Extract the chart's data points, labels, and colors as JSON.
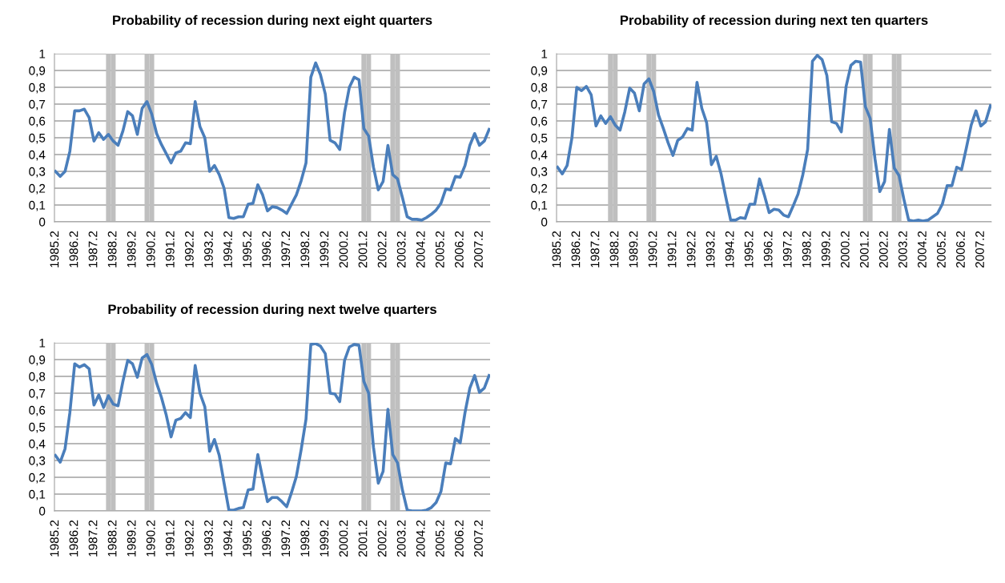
{
  "chart_data": [
    {
      "type": "line",
      "title": "Probability of recession during next eight quarters",
      "categories": [
        "1985.2",
        null,
        null,
        null,
        "1986.2",
        null,
        null,
        null,
        "1987.2",
        null,
        null,
        null,
        "1988.2",
        null,
        null,
        null,
        "1989.2",
        null,
        null,
        null,
        "1990.2",
        null,
        null,
        null,
        "1991.2",
        null,
        null,
        null,
        "1992.2",
        null,
        null,
        null,
        "1993.2",
        null,
        null,
        null,
        "1994.2",
        null,
        null,
        null,
        "1995.2",
        null,
        null,
        null,
        "1996.2",
        null,
        null,
        null,
        "1997.2",
        null,
        null,
        null,
        "1998.2",
        null,
        null,
        null,
        "1999.2",
        null,
        null,
        null,
        "2000.2",
        null,
        null,
        null,
        "2001.2",
        null,
        null,
        null,
        "2002.2",
        null,
        null,
        null,
        "2003.2",
        null,
        null,
        null,
        "2004.2",
        null,
        null,
        null,
        "2005.2",
        null,
        null,
        null,
        "2006.2",
        null,
        null,
        null,
        "2007.2",
        null,
        null
      ],
      "series": [
        {
          "type": "bar",
          "color": "#bfbfbf",
          "values": [
            null,
            null,
            null,
            null,
            null,
            null,
            null,
            null,
            null,
            null,
            null,
            1,
            1,
            null,
            null,
            null,
            null,
            null,
            null,
            1,
            1,
            null,
            null,
            null,
            null,
            null,
            null,
            null,
            null,
            null,
            null,
            null,
            null,
            null,
            null,
            null,
            null,
            null,
            null,
            null,
            null,
            null,
            null,
            null,
            null,
            null,
            null,
            null,
            null,
            null,
            null,
            null,
            null,
            null,
            null,
            null,
            null,
            null,
            null,
            null,
            null,
            null,
            null,
            null,
            1,
            1,
            null,
            null,
            null,
            null,
            1,
            1,
            null,
            null,
            null,
            null,
            null,
            null,
            null,
            null,
            null,
            null,
            null,
            null,
            null,
            null,
            null,
            null,
            null,
            null,
            null
          ]
        },
        {
          "color": "#4a7ebb",
          "values": [
            0.3,
            0.27,
            0.3,
            0.42,
            0.66,
            0.66,
            0.67,
            0.62,
            0.48,
            0.53,
            0.49,
            0.52,
            0.48,
            0.455,
            0.54,
            0.655,
            0.63,
            0.52,
            0.675,
            0.715,
            0.64,
            0.525,
            0.46,
            0.405,
            0.35,
            0.41,
            0.42,
            0.47,
            0.465,
            0.715,
            0.565,
            0.5,
            0.3,
            0.335,
            0.28,
            0.2,
            0.025,
            0.02,
            0.03,
            0.03,
            0.105,
            0.11,
            0.22,
            0.16,
            0.065,
            0.09,
            0.085,
            0.07,
            0.05,
            0.105,
            0.16,
            0.245,
            0.35,
            0.86,
            0.945,
            0.875,
            0.76,
            0.485,
            0.47,
            0.43,
            0.65,
            0.8,
            0.86,
            0.845,
            0.555,
            0.51,
            0.325,
            0.19,
            0.24,
            0.455,
            0.28,
            0.255,
            0.145,
            0.03,
            0.015,
            0.015,
            0.01,
            0.025,
            0.045,
            0.07,
            0.11,
            0.195,
            0.19,
            0.27,
            0.265,
            0.335,
            0.455,
            0.525,
            0.455,
            0.48,
            0.55
          ]
        }
      ],
      "ylim": [
        0,
        1
      ],
      "yticks": [
        0,
        {
          "value": 0.1,
          "label": "0,1"
        },
        {
          "value": 0.2,
          "label": "0,2"
        },
        {
          "value": 0.3,
          "label": "0,3"
        },
        {
          "value": 0.4,
          "label": "0,4"
        },
        {
          "value": 0.5,
          "label": "0,5"
        },
        {
          "value": 0.6,
          "label": "0,6"
        },
        {
          "value": 0.7,
          "label": "0,7"
        },
        {
          "value": 0.8,
          "label": "0,8"
        },
        {
          "value": 0.9,
          "label": "0,9"
        },
        1
      ],
      "grid": "y",
      "marker": "none",
      "line_style": "solid"
    },
    {
      "type": "line",
      "title": "Probability of recession during next ten quarters",
      "categories": [
        "1985.2",
        null,
        null,
        null,
        "1986.2",
        null,
        null,
        null,
        "1987.2",
        null,
        null,
        null,
        "1988.2",
        null,
        null,
        null,
        "1989.2",
        null,
        null,
        null,
        "1990.2",
        null,
        null,
        null,
        "1991.2",
        null,
        null,
        null,
        "1992.2",
        null,
        null,
        null,
        "1993.2",
        null,
        null,
        null,
        "1994.2",
        null,
        null,
        null,
        "1995.2",
        null,
        null,
        null,
        "1996.2",
        null,
        null,
        null,
        "1997.2",
        null,
        null,
        null,
        "1998.2",
        null,
        null,
        null,
        "1999.2",
        null,
        null,
        null,
        "2000.2",
        null,
        null,
        null,
        "2001.2",
        null,
        null,
        null,
        "2002.2",
        null,
        null,
        null,
        "2003.2",
        null,
        null,
        null,
        "2004.2",
        null,
        null,
        null,
        "2005.2",
        null,
        null,
        null,
        "2006.2",
        null,
        null,
        null,
        "2007.2",
        null,
        null
      ],
      "series": [
        {
          "type": "bar",
          "color": "#bfbfbf",
          "values": [
            null,
            null,
            null,
            null,
            null,
            null,
            null,
            null,
            null,
            null,
            null,
            1,
            1,
            null,
            null,
            null,
            null,
            null,
            null,
            1,
            1,
            null,
            null,
            null,
            null,
            null,
            null,
            null,
            null,
            null,
            null,
            null,
            null,
            null,
            null,
            null,
            null,
            null,
            null,
            null,
            null,
            null,
            null,
            null,
            null,
            null,
            null,
            null,
            null,
            null,
            null,
            null,
            null,
            null,
            null,
            null,
            null,
            null,
            null,
            null,
            null,
            null,
            null,
            null,
            1,
            1,
            null,
            null,
            null,
            null,
            1,
            1,
            null,
            null,
            null,
            null,
            null,
            null,
            null,
            null,
            null,
            null,
            null,
            null,
            null,
            null,
            null,
            null,
            null,
            null,
            null
          ]
        },
        {
          "color": "#4a7ebb",
          "values": [
            0.325,
            0.285,
            0.335,
            0.5,
            0.8,
            0.78,
            0.805,
            0.755,
            0.57,
            0.63,
            0.585,
            0.625,
            0.575,
            0.545,
            0.655,
            0.795,
            0.765,
            0.66,
            0.82,
            0.85,
            0.775,
            0.635,
            0.555,
            0.47,
            0.395,
            0.485,
            0.505,
            0.555,
            0.545,
            0.83,
            0.675,
            0.59,
            0.34,
            0.39,
            0.285,
            0.145,
            0.01,
            0.01,
            0.025,
            0.02,
            0.105,
            0.105,
            0.255,
            0.16,
            0.055,
            0.075,
            0.07,
            0.04,
            0.03,
            0.095,
            0.165,
            0.28,
            0.43,
            0.955,
            0.99,
            0.965,
            0.87,
            0.595,
            0.585,
            0.535,
            0.805,
            0.93,
            0.955,
            0.95,
            0.685,
            0.615,
            0.375,
            0.18,
            0.24,
            0.55,
            0.32,
            0.275,
            0.135,
            0.01,
            0.005,
            0.01,
            0.005,
            0.01,
            0.03,
            0.05,
            0.105,
            0.215,
            0.215,
            0.325,
            0.31,
            0.44,
            0.575,
            0.66,
            0.57,
            0.595,
            0.69
          ]
        }
      ],
      "ylim": [
        0,
        1
      ],
      "yticks": [
        0,
        {
          "value": 0.1,
          "label": "0,1"
        },
        {
          "value": 0.2,
          "label": "0,2"
        },
        {
          "value": 0.3,
          "label": "0,3"
        },
        {
          "value": 0.4,
          "label": "0,4"
        },
        {
          "value": 0.5,
          "label": "0,5"
        },
        {
          "value": 0.6,
          "label": "0,6"
        },
        {
          "value": 0.7,
          "label": "0,7"
        },
        {
          "value": 0.8,
          "label": "0,8"
        },
        {
          "value": 0.9,
          "label": "0,9"
        },
        1
      ],
      "grid": "y",
      "marker": "none",
      "line_style": "solid"
    },
    {
      "type": "line",
      "title": "Probability of recession during next twelve quarters",
      "categories": [
        "1985.2",
        null,
        null,
        null,
        "1986.2",
        null,
        null,
        null,
        "1987.2",
        null,
        null,
        null,
        "1988.2",
        null,
        null,
        null,
        "1989.2",
        null,
        null,
        null,
        "1990.2",
        null,
        null,
        null,
        "1991.2",
        null,
        null,
        null,
        "1992.2",
        null,
        null,
        null,
        "1993.2",
        null,
        null,
        null,
        "1994.2",
        null,
        null,
        null,
        "1995.2",
        null,
        null,
        null,
        "1996.2",
        null,
        null,
        null,
        "1997.2",
        null,
        null,
        null,
        "1998.2",
        null,
        null,
        null,
        "1999.2",
        null,
        null,
        null,
        "2000.2",
        null,
        null,
        null,
        "2001.2",
        null,
        null,
        null,
        "2002.2",
        null,
        null,
        null,
        "2003.2",
        null,
        null,
        null,
        "2004.2",
        null,
        null,
        null,
        "2005.2",
        null,
        null,
        null,
        "2006.2",
        null,
        null,
        null,
        "2007.2",
        null,
        null
      ],
      "series": [
        {
          "type": "bar",
          "color": "#bfbfbf",
          "values": [
            null,
            null,
            null,
            null,
            null,
            null,
            null,
            null,
            null,
            null,
            null,
            1,
            1,
            null,
            null,
            null,
            null,
            null,
            null,
            1,
            1,
            null,
            null,
            null,
            null,
            null,
            null,
            null,
            null,
            null,
            null,
            null,
            null,
            null,
            null,
            null,
            null,
            null,
            null,
            null,
            null,
            null,
            null,
            null,
            null,
            null,
            null,
            null,
            null,
            null,
            null,
            null,
            null,
            null,
            null,
            null,
            null,
            null,
            null,
            null,
            null,
            null,
            null,
            null,
            1,
            1,
            null,
            null,
            null,
            null,
            1,
            1,
            null,
            null,
            null,
            null,
            null,
            null,
            null,
            null,
            null,
            null,
            null,
            null,
            null,
            null,
            null,
            null,
            null,
            null,
            null
          ]
        },
        {
          "color": "#4a7ebb",
          "values": [
            0.33,
            0.29,
            0.37,
            0.585,
            0.875,
            0.855,
            0.87,
            0.845,
            0.63,
            0.69,
            0.615,
            0.685,
            0.635,
            0.625,
            0.77,
            0.895,
            0.875,
            0.795,
            0.91,
            0.93,
            0.87,
            0.76,
            0.675,
            0.57,
            0.44,
            0.54,
            0.55,
            0.585,
            0.555,
            0.865,
            0.7,
            0.62,
            0.355,
            0.425,
            0.33,
            0.165,
            0.005,
            0.005,
            0.015,
            0.02,
            0.125,
            0.13,
            0.335,
            0.195,
            0.055,
            0.08,
            0.08,
            0.055,
            0.025,
            0.11,
            0.205,
            0.365,
            0.545,
            0.99,
            0.995,
            0.98,
            0.935,
            0.7,
            0.695,
            0.65,
            0.895,
            0.975,
            0.99,
            0.985,
            0.77,
            0.7,
            0.38,
            0.165,
            0.235,
            0.605,
            0.335,
            0.285,
            0.125,
            0.005,
            0,
            0,
            0,
            0.005,
            0.02,
            0.05,
            0.115,
            0.285,
            0.28,
            0.43,
            0.405,
            0.585,
            0.73,
            0.805,
            0.705,
            0.73,
            0.805
          ]
        }
      ],
      "ylim": [
        0,
        1
      ],
      "yticks": [
        0,
        {
          "value": 0.1,
          "label": "0,1"
        },
        {
          "value": 0.2,
          "label": "0,2"
        },
        {
          "value": 0.3,
          "label": "0,3"
        },
        {
          "value": 0.4,
          "label": "0,4"
        },
        {
          "value": 0.5,
          "label": "0,5"
        },
        {
          "value": 0.6,
          "label": "0,6"
        },
        {
          "value": 0.7,
          "label": "0,7"
        },
        {
          "value": 0.8,
          "label": "0,8"
        },
        {
          "value": 0.9,
          "label": "0,9"
        },
        1
      ],
      "grid": "y",
      "marker": "none",
      "line_style": "solid"
    }
  ]
}
